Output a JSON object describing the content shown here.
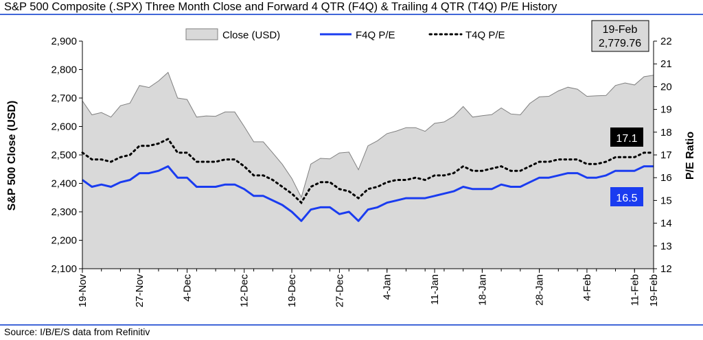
{
  "header": {
    "title": "S&P 500 Composite (.SPX) Three Month Close and Forward 4 QTR (F4Q) & Trailing 4 QTR (T4Q) P/E History"
  },
  "footer": {
    "source": "Source: I/B/E/S data from Refinitiv"
  },
  "colors": {
    "rule": "#0033cc",
    "area_fill": "#d9d9d9",
    "area_stroke": "#7f7f7f",
    "f4q": "#1a3cf0",
    "t4q": "#000000",
    "t4q_badge": "#000000",
    "f4q_badge": "#1a3cf0"
  },
  "callouts": {
    "last_close_date": "19-Feb",
    "last_close_value": "2,779.76",
    "t4q_badge": "17.1",
    "f4q_badge": "16.5"
  },
  "chart_data": {
    "type": "area",
    "title": "S&P 500 Composite (.SPX) Three Month Close and Forward 4 QTR (F4Q) & Trailing 4 QTR (T4Q) P/E History",
    "ylabel": "S&P 500 Close (USD)",
    "y2label": "P/E Ratio",
    "ylim": [
      2100,
      2900
    ],
    "y2lim": [
      12,
      22
    ],
    "yticks": [
      "2,100",
      "2,200",
      "2,300",
      "2,400",
      "2,500",
      "2,600",
      "2,700",
      "2,800",
      "2,900"
    ],
    "y2ticks": [
      "12",
      "13",
      "14",
      "15",
      "16",
      "17",
      "18",
      "19",
      "20",
      "21",
      "22"
    ],
    "xticks": [
      "19-Nov",
      "27-Nov",
      "4-Dec",
      "12-Dec",
      "19-Dec",
      "27-Dec",
      "4-Jan",
      "11-Jan",
      "18-Jan",
      "28-Jan",
      "4-Feb",
      "11-Feb",
      "19-Feb"
    ],
    "xtick_index": [
      0,
      6,
      11,
      17,
      22,
      27,
      32,
      37,
      42,
      48,
      53,
      58,
      63
    ],
    "legend_position": "top",
    "grid": false,
    "series": [
      {
        "name": "Close (USD)",
        "axis": "left",
        "style": "area",
        "values": [
          2690,
          2641,
          2649,
          2633,
          2673,
          2682,
          2744,
          2737,
          2760,
          2790,
          2700,
          2695,
          2633,
          2637,
          2636,
          2651,
          2651,
          2600,
          2546,
          2546,
          2507,
          2467,
          2417,
          2351,
          2468,
          2488,
          2486,
          2507,
          2510,
          2448,
          2532,
          2550,
          2575,
          2584,
          2596,
          2596,
          2583,
          2611,
          2616,
          2636,
          2670,
          2633,
          2638,
          2642,
          2665,
          2644,
          2641,
          2681,
          2704,
          2706,
          2725,
          2738,
          2731,
          2706,
          2708,
          2709,
          2744,
          2753,
          2746,
          2775,
          2780
        ]
      },
      {
        "name": "F4Q P/E",
        "axis": "right",
        "style": "solid",
        "values": [
          15.9,
          15.6,
          15.7,
          15.6,
          15.8,
          15.9,
          16.2,
          16.2,
          16.3,
          16.5,
          16.0,
          16.0,
          15.6,
          15.6,
          15.6,
          15.7,
          15.7,
          15.5,
          15.2,
          15.2,
          15.0,
          14.8,
          14.5,
          14.1,
          14.6,
          14.7,
          14.7,
          14.4,
          14.5,
          14.1,
          14.6,
          14.7,
          14.9,
          15.0,
          15.1,
          15.1,
          15.1,
          15.2,
          15.3,
          15.4,
          15.6,
          15.5,
          15.5,
          15.5,
          15.7,
          15.6,
          15.6,
          15.8,
          16.0,
          16.0,
          16.1,
          16.2,
          16.2,
          16.0,
          16.0,
          16.1,
          16.3,
          16.3,
          16.3,
          16.5,
          16.5
        ]
      },
      {
        "name": "T4Q P/E",
        "axis": "right",
        "style": "dotted",
        "values": [
          17.1,
          16.8,
          16.8,
          16.7,
          16.9,
          17.0,
          17.4,
          17.4,
          17.5,
          17.7,
          17.1,
          17.1,
          16.7,
          16.7,
          16.7,
          16.8,
          16.8,
          16.5,
          16.1,
          16.1,
          15.9,
          15.6,
          15.3,
          14.9,
          15.6,
          15.8,
          15.8,
          15.5,
          15.4,
          15.1,
          15.5,
          15.6,
          15.8,
          15.9,
          15.9,
          16.0,
          15.9,
          16.1,
          16.1,
          16.2,
          16.5,
          16.3,
          16.3,
          16.4,
          16.5,
          16.3,
          16.3,
          16.5,
          16.7,
          16.7,
          16.8,
          16.8,
          16.8,
          16.6,
          16.6,
          16.7,
          16.9,
          16.9,
          16.9,
          17.1,
          17.1
        ]
      }
    ]
  }
}
